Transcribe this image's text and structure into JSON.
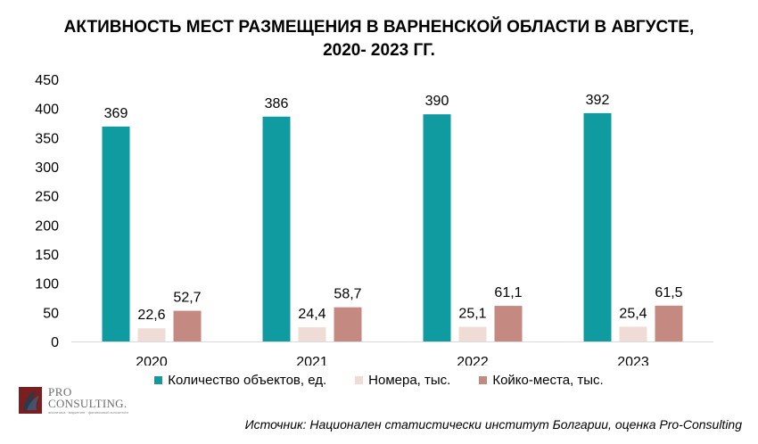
{
  "title_line1": "АКТИВНОСТЬ МЕСТ РАЗМЕЩЕНИЯ В ВАРНЕНСКОЙ ОБЛАСТИ В АВГУСТЕ,",
  "title_line2": "2020- 2023 ГГ.",
  "source": "Источник: Национален статистически институт Болгарии, оценка Pro-Consulting",
  "logo": {
    "line1": "PRO",
    "line2": "CONSULTING.",
    "tagline": "аналитика ∙ маркетинг ∙ финансовый консалтинг"
  },
  "colors": {
    "objects": "#109ba1",
    "rooms": "#efdcd6",
    "beds": "#c48a82",
    "axis": "#d9d9d9"
  },
  "chart_data": {
    "type": "bar",
    "categories": [
      "2020",
      "2021",
      "2022",
      "2023"
    ],
    "series": [
      {
        "name": "Количество объектов, ед.",
        "values": [
          369,
          386,
          390,
          392
        ],
        "labels": [
          "369",
          "386",
          "390",
          "392"
        ]
      },
      {
        "name": "Номера, тыс.",
        "values": [
          22.6,
          24.4,
          25.1,
          25.4
        ],
        "labels": [
          "22,6",
          "24,4",
          "25,1",
          "25,4"
        ]
      },
      {
        "name": "Койко-места, тыс.",
        "values": [
          52.7,
          58.7,
          61.1,
          61.5
        ],
        "labels": [
          "52,7",
          "58,7",
          "61,1",
          "61,5"
        ]
      }
    ],
    "ylim": [
      0,
      450
    ],
    "yticks": [
      0,
      50,
      100,
      150,
      200,
      250,
      300,
      350,
      400,
      450
    ],
    "grid": false,
    "legend_position": "bottom"
  }
}
